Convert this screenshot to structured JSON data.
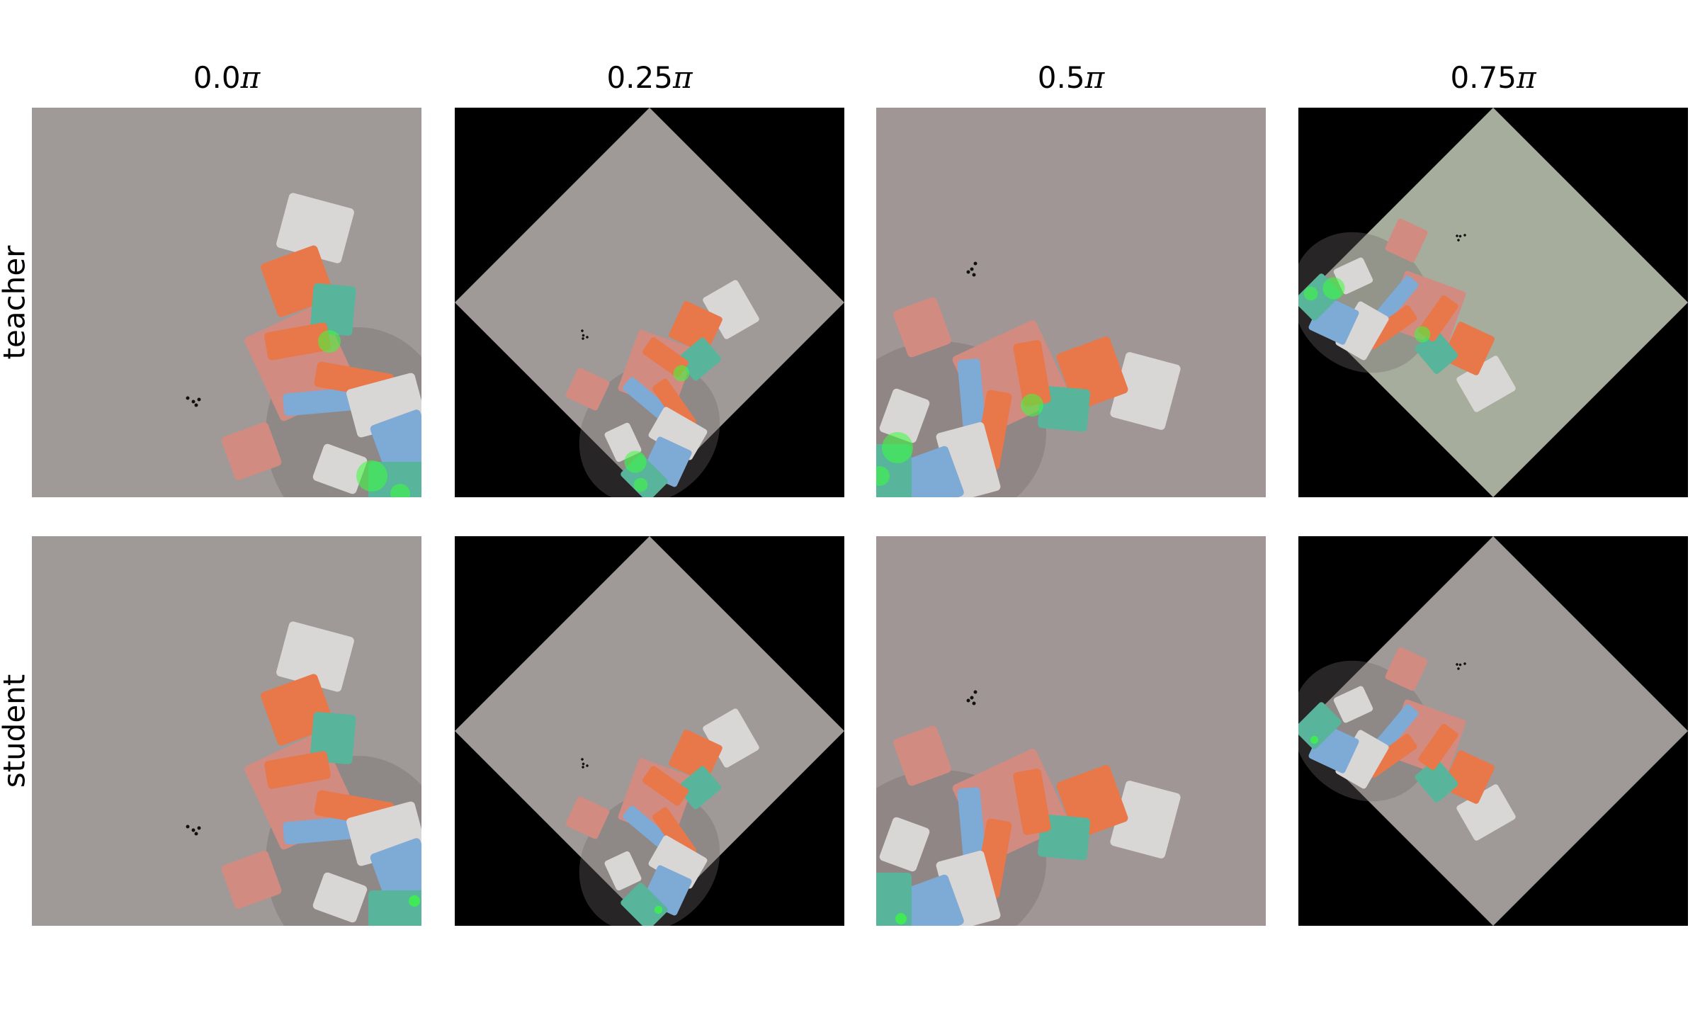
{
  "columns": [
    {
      "label": "0.0",
      "symbol": "π",
      "rotation_pi": 0.0
    },
    {
      "label": "0.25",
      "symbol": "π",
      "rotation_pi": 0.25
    },
    {
      "label": "0.5",
      "symbol": "π",
      "rotation_pi": 0.5
    },
    {
      "label": "0.75",
      "symbol": "π",
      "rotation_pi": 0.75
    }
  ],
  "rows": [
    {
      "label": "teacher"
    },
    {
      "label": "student"
    }
  ],
  "colors": {
    "table": "#9f9a97",
    "table_warm": "#a19696",
    "table_greenish": "#a7ad9c",
    "orange": "#e8784a",
    "teal": "#59b49c",
    "blue": "#7eaad6",
    "pink": "#d28b81",
    "white_block": "#d9d6d6",
    "highlight": "#38ff3a",
    "background_fill": "#000000"
  }
}
